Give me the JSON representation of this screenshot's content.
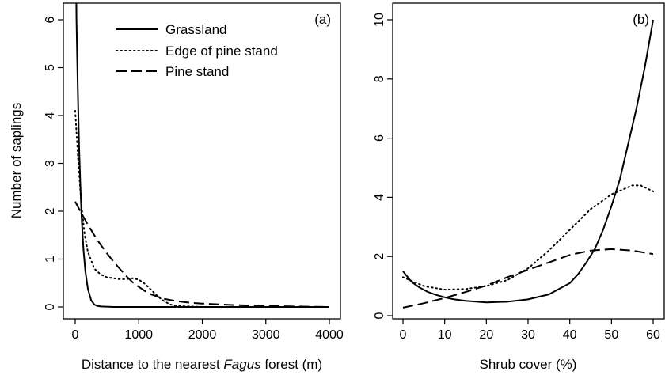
{
  "y_axis_label": "Number of saplings",
  "chart_data": [
    {
      "type": "line",
      "panel_label": "(a)",
      "xlabel_prefix": "Distance to the nearest ",
      "xlabel_italic": "Fagus",
      "xlabel_suffix": " forest (m)",
      "ylabel": "Number of saplings",
      "xlim": [
        0,
        4000
      ],
      "ylim": [
        0,
        6
      ],
      "x_ticks": [
        0,
        1000,
        2000,
        3000,
        4000
      ],
      "y_ticks": [
        0,
        1,
        2,
        3,
        4,
        5,
        6
      ],
      "legend_position": "top-center",
      "series": [
        {
          "name": "Grassland",
          "style": "solid",
          "x": [
            0,
            20,
            40,
            60,
            80,
            100,
            130,
            160,
            200,
            250,
            300,
            350,
            400,
            600,
            1000,
            2000,
            3000,
            4000
          ],
          "y": [
            9.0,
            6.0,
            4.6,
            3.4,
            2.6,
            1.9,
            1.2,
            0.75,
            0.38,
            0.14,
            0.05,
            0.02,
            0.01,
            0.0,
            0.0,
            0.0,
            0.0,
            0.0
          ]
        },
        {
          "name": "Edge of pine stand",
          "style": "dotted",
          "x": [
            0,
            50,
            100,
            150,
            200,
            300,
            400,
            500,
            600,
            700,
            800,
            900,
            1000,
            1100,
            1200,
            1300,
            1400,
            1500,
            1600,
            2000,
            3000,
            4000
          ],
          "y": [
            4.1,
            3.0,
            2.1,
            1.5,
            1.15,
            0.8,
            0.68,
            0.62,
            0.6,
            0.58,
            0.58,
            0.6,
            0.57,
            0.48,
            0.35,
            0.22,
            0.12,
            0.05,
            0.02,
            0.0,
            0.0,
            0.0
          ]
        },
        {
          "name": "Pine stand",
          "style": "dashed",
          "x": [
            0,
            100,
            200,
            300,
            400,
            500,
            600,
            700,
            800,
            900,
            1000,
            1100,
            1200,
            1400,
            1600,
            1800,
            2000,
            2500,
            3000,
            3500,
            4000
          ],
          "y": [
            2.2,
            1.95,
            1.72,
            1.5,
            1.3,
            1.12,
            0.95,
            0.8,
            0.65,
            0.52,
            0.42,
            0.33,
            0.26,
            0.17,
            0.12,
            0.09,
            0.07,
            0.04,
            0.02,
            0.01,
            0.0
          ]
        }
      ]
    },
    {
      "type": "line",
      "panel_label": "(b)",
      "xlabel": "Shrub cover (%)",
      "ylabel": "",
      "xlim": [
        0,
        60
      ],
      "ylim": [
        0,
        10
      ],
      "x_ticks": [
        0,
        10,
        20,
        30,
        40,
        50,
        60
      ],
      "y_ticks": [
        0,
        2,
        4,
        6,
        8,
        10
      ],
      "series": [
        {
          "name": "Grassland",
          "style": "solid",
          "x": [
            0,
            2,
            4,
            6,
            8,
            10,
            12,
            15,
            20,
            25,
            30,
            35,
            40,
            42,
            44,
            46,
            48,
            50,
            52,
            54,
            56,
            58,
            60
          ],
          "y": [
            1.5,
            1.15,
            0.95,
            0.8,
            0.7,
            0.62,
            0.56,
            0.5,
            0.45,
            0.47,
            0.55,
            0.72,
            1.1,
            1.4,
            1.8,
            2.25,
            2.9,
            3.7,
            4.6,
            5.8,
            7.0,
            8.4,
            10.0
          ]
        },
        {
          "name": "Edge of pine stand",
          "style": "dotted",
          "x": [
            0,
            5,
            10,
            15,
            20,
            25,
            30,
            35,
            40,
            45,
            50,
            55,
            57,
            60
          ],
          "y": [
            1.3,
            1.0,
            0.88,
            0.9,
            1.0,
            1.2,
            1.6,
            2.2,
            2.9,
            3.6,
            4.1,
            4.4,
            4.4,
            4.2
          ]
        },
        {
          "name": "Pine stand",
          "style": "dashed",
          "x": [
            0,
            5,
            10,
            15,
            20,
            25,
            30,
            35,
            40,
            45,
            50,
            55,
            60
          ],
          "y": [
            0.27,
            0.42,
            0.6,
            0.8,
            1.02,
            1.3,
            1.55,
            1.8,
            2.05,
            2.2,
            2.25,
            2.2,
            2.08
          ]
        }
      ]
    }
  ]
}
